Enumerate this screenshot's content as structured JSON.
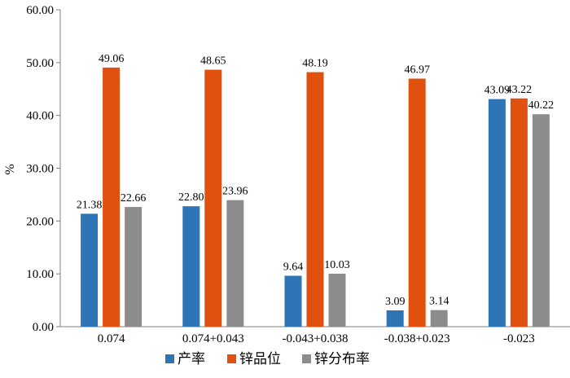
{
  "chart_data": {
    "type": "bar",
    "title": "",
    "xlabel": "",
    "ylabel": "%",
    "ylim": [
      0,
      60
    ],
    "yticks": [
      "0.00",
      "10.00",
      "20.00",
      "30.00",
      "40.00",
      "50.00",
      "60.00"
    ],
    "grid": false,
    "legend_position": "bottom",
    "categories": [
      "0.074",
      "0.074+0.043",
      "-0.043+0.038",
      "-0.038+0.023",
      "-0.023"
    ],
    "series": [
      {
        "name": "产率",
        "color": "#2E75B6",
        "values": [
          21.38,
          22.8,
          9.64,
          3.09,
          43.09
        ],
        "labels": [
          "21.38",
          "22.80",
          "9.64",
          "3.09",
          "43.09"
        ]
      },
      {
        "name": "锌品位",
        "color": "#E0500F",
        "values": [
          49.06,
          48.65,
          48.19,
          46.97,
          43.22
        ],
        "labels": [
          "49.06",
          "48.65",
          "48.19",
          "46.97",
          "43.22"
        ]
      },
      {
        "name": "锌分布率",
        "color": "#8C8C8C",
        "values": [
          22.66,
          23.96,
          10.03,
          3.14,
          40.22
        ],
        "labels": [
          "22.66",
          "23.96",
          "10.03",
          "3.14",
          "40.22"
        ]
      }
    ]
  }
}
